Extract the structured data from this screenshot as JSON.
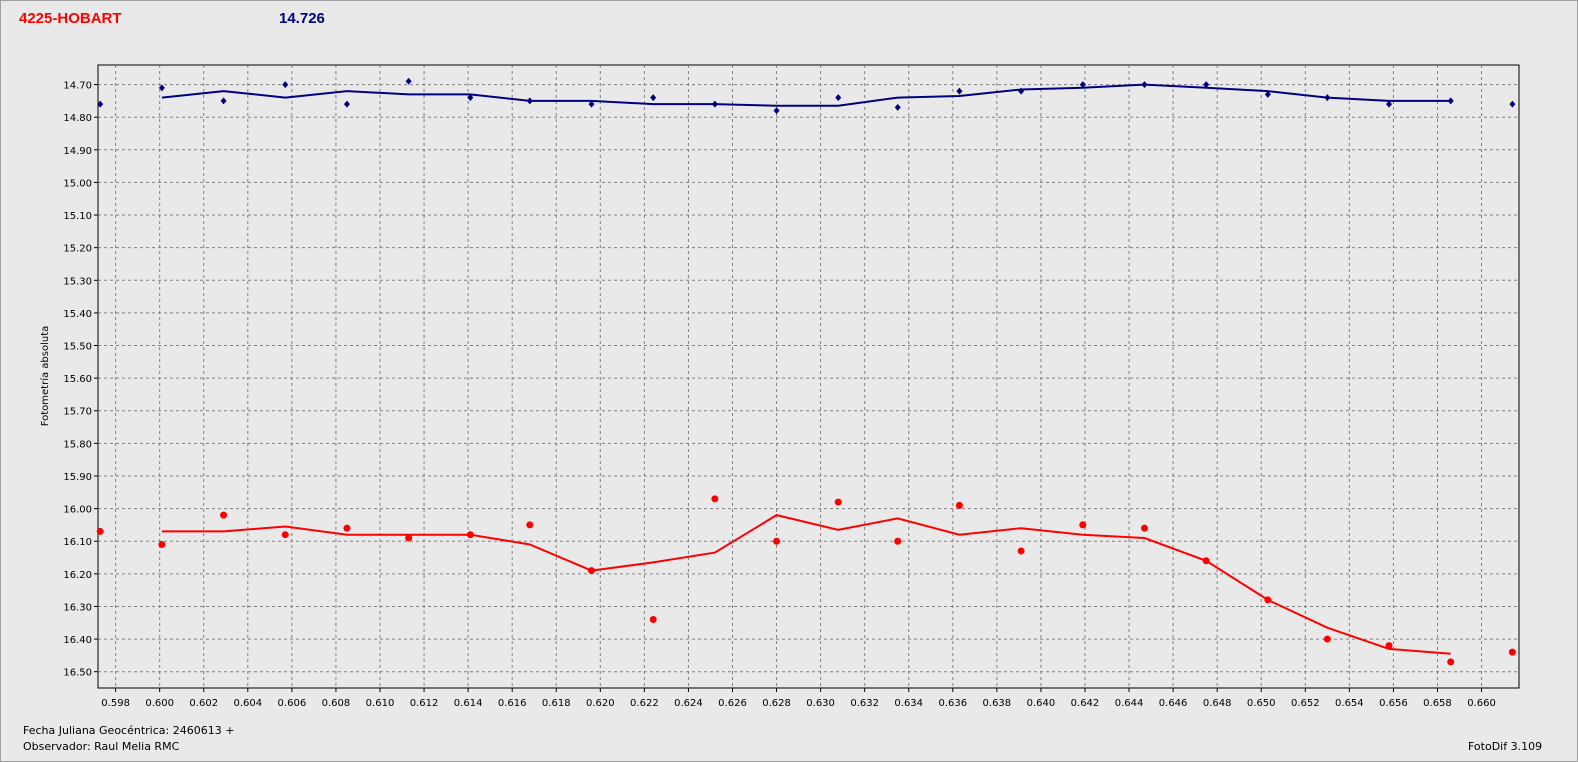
{
  "header": {
    "object_name": "4225-HOBART",
    "reference_mag": "14.726"
  },
  "footer": {
    "julian_date": "Fecha Juliana Geocéntrica: 2460613 +",
    "observer": "Observador: Raul Melia RMC",
    "software": "FotoDif 3.109"
  },
  "colors": {
    "comparison": "#000080",
    "target": "#ff0000",
    "grid": "#808080",
    "plot_bg": "#e9e9e9"
  },
  "chart_data": {
    "type": "scatter",
    "ylabel": "Fotometría absoluta",
    "xlabel": "",
    "xlim": [
      0.5972,
      0.6617
    ],
    "ylim": [
      14.64,
      16.55
    ],
    "y_inverted": true,
    "grid": true,
    "x_ticks": [
      "0.598",
      "0.600",
      "0.602",
      "0.604",
      "0.606",
      "0.608",
      "0.610",
      "0.612",
      "0.614",
      "0.616",
      "0.618",
      "0.620",
      "0.622",
      "0.624",
      "0.626",
      "0.628",
      "0.630",
      "0.632",
      "0.634",
      "0.636",
      "0.638",
      "0.640",
      "0.642",
      "0.644",
      "0.646",
      "0.648",
      "0.650",
      "0.652",
      "0.654",
      "0.656",
      "0.658",
      "0.660"
    ],
    "y_ticks": [
      "14.70",
      "14.80",
      "14.90",
      "15.00",
      "15.10",
      "15.20",
      "15.30",
      "15.40",
      "15.50",
      "15.60",
      "15.70",
      "15.80",
      "15.90",
      "16.00",
      "16.10",
      "16.20",
      "16.30",
      "16.40",
      "16.50"
    ],
    "series": [
      {
        "marker": "diamond",
        "color": "#000080",
        "x": [
          0.5973,
          0.6001,
          0.6029,
          0.6057,
          0.6085,
          0.6113,
          0.6141,
          0.6168,
          0.6196,
          0.6224,
          0.6252,
          0.628,
          0.6308,
          0.6335,
          0.6363,
          0.6391,
          0.6419,
          0.6447,
          0.6475,
          0.6503,
          0.653,
          0.6558,
          0.6586,
          0.6614
        ],
        "y": [
          14.76,
          14.71,
          14.75,
          14.7,
          14.76,
          14.69,
          14.74,
          14.75,
          14.76,
          14.74,
          14.76,
          14.78,
          14.74,
          14.77,
          14.72,
          14.72,
          14.7,
          14.7,
          14.7,
          14.73,
          14.74,
          14.76,
          14.75,
          14.76
        ],
        "fit_x": [
          0.6001,
          0.6029,
          0.6057,
          0.6085,
          0.6113,
          0.6141,
          0.6168,
          0.6196,
          0.6224,
          0.6252,
          0.628,
          0.6308,
          0.6335,
          0.6363,
          0.6391,
          0.6419,
          0.6447,
          0.6475,
          0.6503,
          0.653,
          0.6558,
          0.6586
        ],
        "fit_y": [
          14.74,
          14.72,
          14.74,
          14.72,
          14.73,
          14.73,
          14.75,
          14.75,
          14.76,
          14.76,
          14.765,
          14.765,
          14.74,
          14.735,
          14.715,
          14.71,
          14.7,
          14.71,
          14.72,
          14.74,
          14.75,
          14.75
        ]
      },
      {
        "marker": "circle",
        "color": "#ff0000",
        "x": [
          0.5973,
          0.6001,
          0.6029,
          0.6057,
          0.6085,
          0.6113,
          0.6141,
          0.6168,
          0.6196,
          0.6224,
          0.6252,
          0.628,
          0.6308,
          0.6335,
          0.6363,
          0.6391,
          0.6419,
          0.6447,
          0.6475,
          0.6503,
          0.653,
          0.6558,
          0.6586,
          0.6614
        ],
        "y": [
          16.07,
          16.11,
          16.02,
          16.08,
          16.06,
          16.09,
          16.08,
          16.05,
          16.19,
          16.34,
          15.97,
          16.1,
          15.98,
          16.1,
          15.99,
          16.13,
          16.05,
          16.06,
          16.16,
          16.28,
          16.4,
          16.42,
          16.47,
          16.44
        ],
        "fit_x": [
          0.6001,
          0.6029,
          0.6057,
          0.6085,
          0.6113,
          0.6141,
          0.6168,
          0.6196,
          0.6224,
          0.6252,
          0.628,
          0.6308,
          0.6335,
          0.6363,
          0.6391,
          0.6419,
          0.6447,
          0.6475,
          0.6503,
          0.653,
          0.6558,
          0.6586
        ],
        "fit_y": [
          16.07,
          16.07,
          16.055,
          16.08,
          16.08,
          16.08,
          16.11,
          16.19,
          16.165,
          16.135,
          16.02,
          16.065,
          16.03,
          16.08,
          16.06,
          16.08,
          16.09,
          16.16,
          16.28,
          16.365,
          16.43,
          16.445
        ]
      }
    ]
  }
}
